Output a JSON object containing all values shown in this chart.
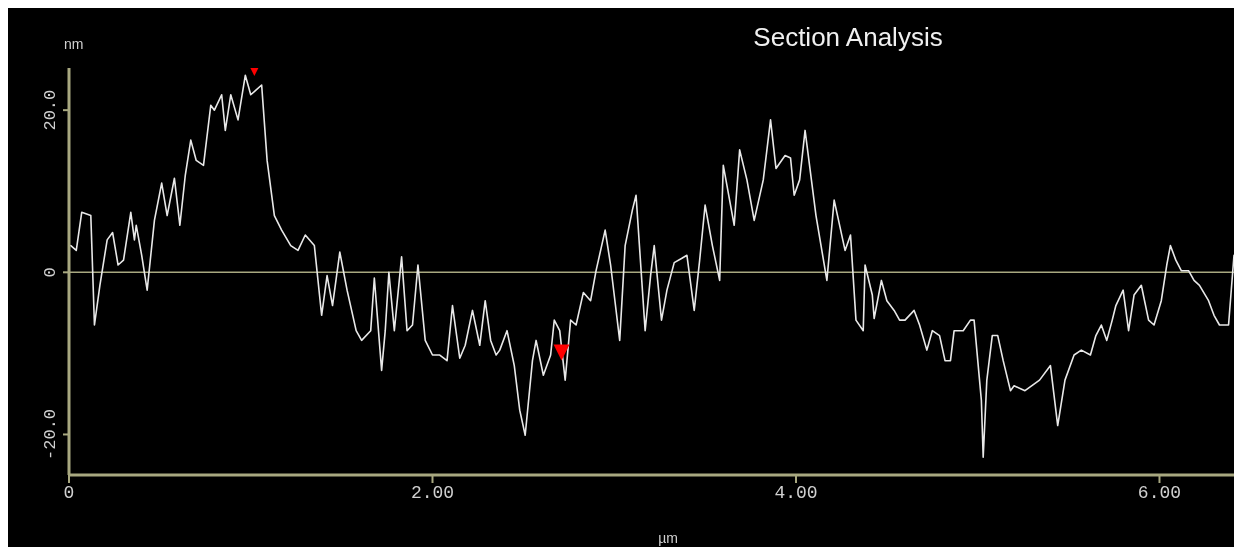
{
  "chart_data": {
    "type": "line",
    "title": "Section Analysis",
    "xlabel": "µm",
    "ylabel": "nm",
    "xlim": [
      0,
      6.41
    ],
    "ylim": [
      -25,
      25.2
    ],
    "xticks": [
      0,
      {
        "value": 2,
        "label": "2.00"
      },
      {
        "value": 4,
        "label": "4.00"
      },
      {
        "value": 6,
        "label": "6.00"
      }
    ],
    "yticks": [
      {
        "value": -20,
        "label": "-20.0"
      },
      0,
      {
        "value": 20,
        "label": "20.0"
      }
    ],
    "ref_lines": [
      {
        "axis": "y",
        "value": 0,
        "color": "#a8a880"
      }
    ],
    "series": [
      {
        "color": "#e8e8e8",
        "marker": "none",
        "line_style": "solid",
        "x": [
          0.01,
          0.04,
          0.07,
          0.12,
          0.14,
          0.17,
          0.21,
          0.24,
          0.27,
          0.3,
          0.34,
          0.36,
          0.37,
          0.4,
          0.43,
          0.47,
          0.51,
          0.54,
          0.58,
          0.61,
          0.64,
          0.67,
          0.7,
          0.74,
          0.78,
          0.8,
          0.84,
          0.86,
          0.89,
          0.93,
          0.97,
          1.0,
          1.06,
          1.09,
          1.13,
          1.17,
          1.22,
          1.26,
          1.3,
          1.35,
          1.39,
          1.42,
          1.45,
          1.49,
          1.53,
          1.58,
          1.61,
          1.66,
          1.68,
          1.72,
          1.74,
          1.76,
          1.79,
          1.83,
          1.86,
          1.89,
          1.92,
          1.96,
          2.0,
          2.04,
          2.08,
          2.11,
          2.15,
          2.18,
          2.22,
          2.26,
          2.29,
          2.32,
          2.35,
          2.37,
          2.41,
          2.45,
          2.48,
          2.51,
          2.55,
          2.57,
          2.61,
          2.65,
          2.67,
          2.7,
          2.73,
          2.76,
          2.79,
          2.83,
          2.87,
          2.9,
          2.95,
          2.98,
          3.03,
          3.06,
          3.1,
          3.12,
          3.17,
          3.2,
          3.22,
          3.26,
          3.29,
          3.33,
          3.37,
          3.4,
          3.44,
          3.47,
          3.5,
          3.54,
          3.58,
          3.6,
          3.66,
          3.69,
          3.73,
          3.77,
          3.82,
          3.86,
          3.89,
          3.94,
          3.97,
          3.99,
          4.02,
          4.05,
          4.11,
          4.17,
          4.21,
          4.27,
          4.3,
          4.33,
          4.37,
          4.38,
          4.42,
          4.43,
          4.47,
          4.5,
          4.54,
          4.57,
          4.6,
          4.65,
          4.68,
          4.72,
          4.75,
          4.79,
          4.82,
          4.85,
          4.87,
          4.92,
          4.96,
          4.98,
          5.02,
          5.03,
          5.05,
          5.08,
          5.11,
          5.14,
          5.18,
          5.2,
          5.26,
          5.34,
          5.4,
          5.44,
          5.48,
          5.53,
          5.57,
          5.62,
          5.65,
          5.68,
          5.71,
          5.74,
          5.76,
          5.8,
          5.83,
          5.86,
          5.9,
          5.94,
          5.97,
          6.01,
          6.04,
          6.06,
          6.09,
          6.12,
          6.16,
          6.19,
          6.22,
          6.27,
          6.3,
          6.33,
          6.38,
          6.41
        ],
        "values": [
          3.3,
          2.7,
          7.4,
          7.0,
          -6.5,
          -1.6,
          4.0,
          4.9,
          0.9,
          1.5,
          7.4,
          4.0,
          5.8,
          2.1,
          -2.2,
          6.4,
          11.0,
          7.0,
          11.6,
          5.8,
          12.0,
          16.3,
          13.8,
          13.2,
          20.6,
          20.0,
          21.9,
          17.5,
          21.9,
          18.8,
          24.3,
          21.9,
          23.1,
          13.8,
          7.0,
          5.2,
          3.3,
          2.7,
          4.6,
          3.3,
          -5.3,
          -0.4,
          -4.1,
          2.5,
          -2.2,
          -7.2,
          -8.4,
          -7.2,
          -0.7,
          -12.1,
          -7.2,
          0,
          -7.2,
          1.9,
          -7.2,
          -6.5,
          0.9,
          -8.4,
          -10.2,
          -10.2,
          -10.9,
          -4.1,
          -10.6,
          -9.0,
          -4.7,
          -9.0,
          -3.5,
          -8.4,
          -10.2,
          -9.6,
          -7.2,
          -11.5,
          -17.0,
          -20.1,
          -10.9,
          -8.4,
          -12.7,
          -10.2,
          -5.9,
          -7.2,
          -13.3,
          -5.9,
          -6.5,
          -2.5,
          -3.5,
          0.2,
          5.2,
          0.9,
          -8.4,
          3.3,
          7.7,
          9.5,
          -7.2,
          -0.4,
          3.3,
          -5.9,
          -2.2,
          1.2,
          1.7,
          2.1,
          -4.7,
          1.5,
          8.3,
          3.3,
          -1.0,
          13.2,
          5.8,
          15.1,
          11.4,
          6.4,
          11.4,
          18.8,
          12.8,
          14.4,
          14.1,
          9.5,
          11.4,
          17.5,
          7.0,
          -1.0,
          8.9,
          2.7,
          4.6,
          -5.9,
          -7.2,
          0.9,
          -2.8,
          -5.7,
          -1.0,
          -3.5,
          -4.7,
          -5.9,
          -5.9,
          -4.7,
          -6.5,
          -9.6,
          -7.2,
          -7.8,
          -10.9,
          -10.9,
          -7.2,
          -7.2,
          -5.9,
          -5.9,
          -15.8,
          -22.8,
          -13.3,
          -7.8,
          -7.8,
          -10.9,
          -14.6,
          -14.0,
          -14.6,
          -13.3,
          -11.5,
          -18.9,
          -13.3,
          -10.2,
          -9.6,
          -10.2,
          -7.8,
          -6.5,
          -8.4,
          -5.9,
          -4.1,
          -2.2,
          -7.2,
          -2.8,
          -1.6,
          -5.9,
          -6.5,
          -3.5,
          0.9,
          3.3,
          1.5,
          0.2,
          0.2,
          -1.0,
          -1.6,
          -3.5,
          -5.3,
          -6.5,
          -6.5,
          2.1
        ]
      },
      {
        "type": "scatter",
        "color": "#ff0000",
        "marker": "triangle",
        "x": [
          1.02,
          2.71
        ],
        "values": [
          25.2,
          -9.9
        ]
      }
    ]
  }
}
